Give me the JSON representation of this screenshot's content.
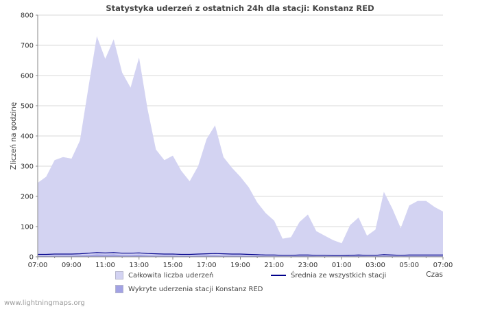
{
  "page": {
    "title": "Statystyka uderzeń z ostatnich 24h dla stacji: Konstanz RED",
    "watermark": "www.lightningmaps.org"
  },
  "axes": {
    "y_label": "Zliczeń na godzinę",
    "x_label": "Czas"
  },
  "legend": {
    "items": [
      {
        "label": "Całkowita liczba uderzeń",
        "series": "total"
      },
      {
        "label": "Średnia ze wszystkich stacji",
        "series": "average"
      },
      {
        "label": "Wykryte uderzenia stacji Konstanz RED",
        "series": "station"
      }
    ]
  },
  "chart_data": {
    "type": "area",
    "title": "Statystyka uderzeń z ostatnich 24h dla stacji: Konstanz RED",
    "xlabel": "Czas",
    "ylabel": "Zliczeń na godzinę",
    "ylim": [
      0,
      800
    ],
    "grid": true,
    "legend_position": "bottom",
    "x_hours": [
      0,
      0.5,
      1,
      1.5,
      2,
      2.5,
      3,
      3.5,
      4,
      4.5,
      5,
      5.5,
      6,
      6.5,
      7,
      7.5,
      8,
      8.5,
      9,
      9.5,
      10,
      10.5,
      11,
      11.5,
      12,
      12.5,
      13,
      13.5,
      14,
      14.5,
      15,
      15.5,
      16,
      16.5,
      17,
      17.5,
      18,
      18.5,
      19,
      19.5,
      20,
      20.5,
      21,
      21.5,
      22,
      22.5,
      23,
      23.5,
      24
    ],
    "x_tick_hours": [
      0,
      2,
      4,
      6,
      8,
      10,
      12,
      14,
      16,
      18,
      20,
      22,
      24
    ],
    "x_tick_labels": [
      "07:00",
      "09:00",
      "11:00",
      "13:00",
      "15:00",
      "17:00",
      "19:00",
      "21:00",
      "23:00",
      "01:00",
      "03:00",
      "05:00",
      "07:00"
    ],
    "y_ticks": [
      0,
      100,
      200,
      300,
      400,
      500,
      600,
      700,
      800
    ],
    "series": [
      {
        "id": "total",
        "name": "Całkowita liczba uderzeń",
        "type": "area",
        "color": "#d3d3f2",
        "values": [
          245,
          265,
          320,
          330,
          325,
          385,
          560,
          730,
          655,
          720,
          610,
          560,
          660,
          490,
          355,
          320,
          335,
          285,
          250,
          300,
          390,
          435,
          330,
          295,
          265,
          230,
          180,
          145,
          120,
          60,
          65,
          115,
          140,
          85,
          70,
          55,
          45,
          105,
          130,
          70,
          90,
          215,
          160,
          95,
          170,
          185,
          185,
          165,
          150
        ]
      },
      {
        "id": "station",
        "name": "Wykryte uderzenia stacji Konstanz RED",
        "type": "area",
        "color": "#a2a2e4",
        "values": [
          3,
          3,
          4,
          4,
          4,
          5,
          6,
          8,
          7,
          8,
          6,
          6,
          7,
          5,
          4,
          4,
          4,
          3,
          3,
          4,
          5,
          5,
          4,
          4,
          4,
          3,
          3,
          2,
          2,
          2,
          2,
          3,
          3,
          2,
          2,
          2,
          2,
          3,
          3,
          2,
          2,
          3,
          3,
          2,
          3,
          3,
          3,
          3,
          3
        ]
      },
      {
        "id": "average",
        "name": "Średnia ze wszystkich stacji",
        "type": "line",
        "color": "#00008b",
        "values": [
          8,
          8,
          9,
          9,
          9,
          10,
          12,
          14,
          13,
          14,
          12,
          12,
          13,
          11,
          10,
          9,
          9,
          8,
          8,
          9,
          10,
          11,
          10,
          9,
          9,
          8,
          7,
          6,
          6,
          5,
          5,
          6,
          6,
          5,
          5,
          4,
          4,
          5,
          6,
          5,
          5,
          7,
          6,
          5,
          6,
          6,
          6,
          6,
          6
        ]
      }
    ]
  }
}
